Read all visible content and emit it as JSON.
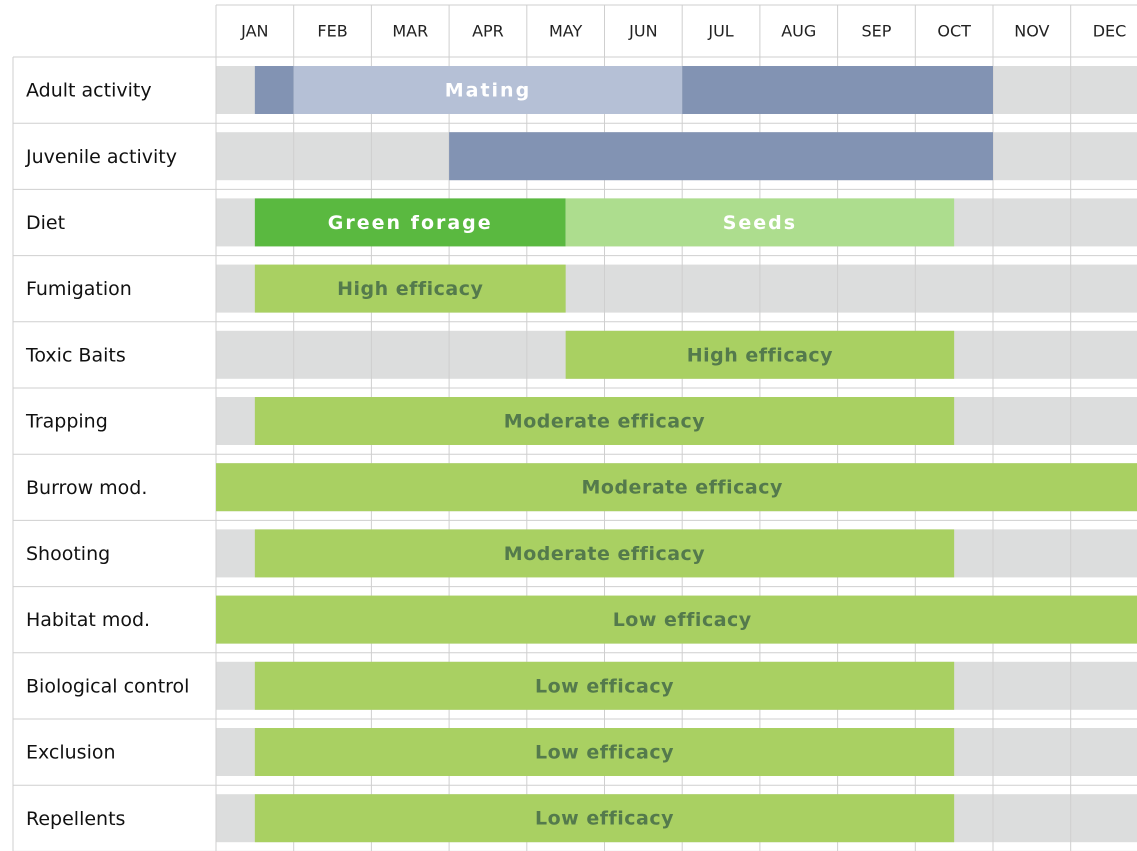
{
  "months": [
    "JAN",
    "FEB",
    "MAR",
    "APR",
    "MAY",
    "JUN",
    "JUL",
    "AUG",
    "SEP",
    "OCT",
    "NOV",
    "DEC"
  ],
  "xlim": [
    0,
    12
  ],
  "rows": [
    {
      "label": "Adult activity",
      "segments": [
        {
          "start": 0.5,
          "end": 1,
          "color": "#8293b3"
        },
        {
          "start": 1,
          "end": 6,
          "color": "#b5c0d6",
          "label": "Mating",
          "label_color": "#ffffff"
        },
        {
          "start": 6,
          "end": 10,
          "color": "#8293b3"
        }
      ]
    },
    {
      "label": "Juvenile activity",
      "segments": [
        {
          "start": 3,
          "end": 10,
          "color": "#8293b3"
        }
      ]
    },
    {
      "label": "Diet",
      "segments": [
        {
          "start": 0.5,
          "end": 4.5,
          "color": "#5ab940",
          "label": "Green forage",
          "label_color": "#ffffff"
        },
        {
          "start": 4.5,
          "end": 9.5,
          "color": "#addd8e",
          "label": "Seeds",
          "label_color": "#ffffff"
        }
      ]
    },
    {
      "label": "Fumigation",
      "segments": [
        {
          "start": 0.5,
          "end": 4.5,
          "color": "#a9d062",
          "label": "High efficacy",
          "label_color": "#547a4c"
        }
      ]
    },
    {
      "label": "Toxic Baits",
      "segments": [
        {
          "start": 4.5,
          "end": 9.5,
          "color": "#a9d062",
          "label": "High efficacy",
          "label_color": "#547a4c"
        }
      ]
    },
    {
      "label": "Trapping",
      "segments": [
        {
          "start": 0.5,
          "end": 9.5,
          "color": "#a9d062",
          "label": "Moderate efficacy",
          "label_color": "#547a4c"
        }
      ]
    },
    {
      "label": "Burrow mod.",
      "segments": [
        {
          "start": 0,
          "end": 12,
          "color": "#a9d062",
          "label": "Moderate efficacy",
          "label_color": "#547a4c"
        }
      ]
    },
    {
      "label": "Shooting",
      "segments": [
        {
          "start": 0.5,
          "end": 9.5,
          "color": "#a9d062",
          "label": "Moderate efficacy",
          "label_color": "#547a4c"
        }
      ]
    },
    {
      "label": "Habitat mod.",
      "segments": [
        {
          "start": 0,
          "end": 12,
          "color": "#a9d062",
          "label": "Low efficacy",
          "label_color": "#547a4c"
        }
      ]
    },
    {
      "label": "Biological control",
      "segments": [
        {
          "start": 0.5,
          "end": 9.5,
          "color": "#a9d062",
          "label": "Low efficacy",
          "label_color": "#547a4c"
        }
      ]
    },
    {
      "label": "Exclusion",
      "segments": [
        {
          "start": 0.5,
          "end": 9.5,
          "color": "#a9d062",
          "label": "Low efficacy",
          "label_color": "#547a4c"
        }
      ]
    },
    {
      "label": "Repellents",
      "segments": [
        {
          "start": 0.5,
          "end": 9.5,
          "color": "#a9d062",
          "label": "Low efficacy",
          "label_color": "#547a4c"
        }
      ]
    }
  ]
}
